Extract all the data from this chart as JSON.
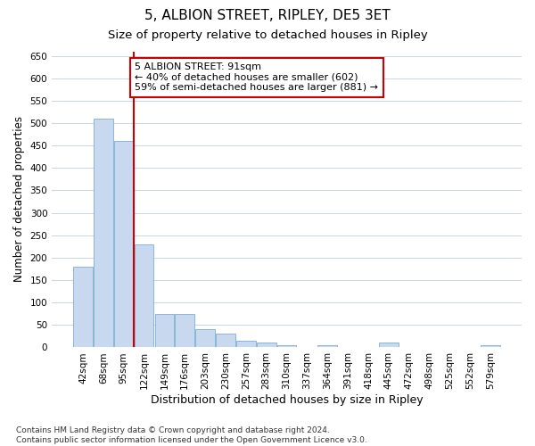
{
  "title1": "5, ALBION STREET, RIPLEY, DE5 3ET",
  "title2": "Size of property relative to detached houses in Ripley",
  "xlabel": "Distribution of detached houses by size in Ripley",
  "ylabel": "Number of detached properties",
  "footnote": "Contains HM Land Registry data © Crown copyright and database right 2024.\nContains public sector information licensed under the Open Government Licence v3.0.",
  "bar_labels": [
    "42sqm",
    "68sqm",
    "95sqm",
    "122sqm",
    "149sqm",
    "176sqm",
    "203sqm",
    "230sqm",
    "257sqm",
    "283sqm",
    "310sqm",
    "337sqm",
    "364sqm",
    "391sqm",
    "418sqm",
    "445sqm",
    "472sqm",
    "498sqm",
    "525sqm",
    "552sqm",
    "579sqm"
  ],
  "bar_values": [
    180,
    510,
    460,
    230,
    75,
    75,
    40,
    30,
    15,
    10,
    5,
    0,
    5,
    0,
    0,
    10,
    0,
    0,
    0,
    0,
    5
  ],
  "bar_color": "#c8d9ef",
  "bar_edge_color": "#7aafd4",
  "vline_x_index": 2,
  "vline_color": "#cc0000",
  "annotation_text": "5 ALBION STREET: 91sqm\n← 40% of detached houses are smaller (602)\n59% of semi-detached houses are larger (881) →",
  "annotation_box_color": "#ffffff",
  "annotation_box_edge": "#cc0000",
  "ylim": [
    0,
    660
  ],
  "yticks": [
    0,
    50,
    100,
    150,
    200,
    250,
    300,
    350,
    400,
    450,
    500,
    550,
    600,
    650
  ],
  "grid_color": "#c8d4e8",
  "bg_color": "#ffffff",
  "title1_fontsize": 11,
  "title2_fontsize": 9.5,
  "xlabel_fontsize": 9,
  "ylabel_fontsize": 8.5,
  "tick_fontsize": 7.5,
  "annotation_fontsize": 8,
  "footnote_fontsize": 6.5
}
